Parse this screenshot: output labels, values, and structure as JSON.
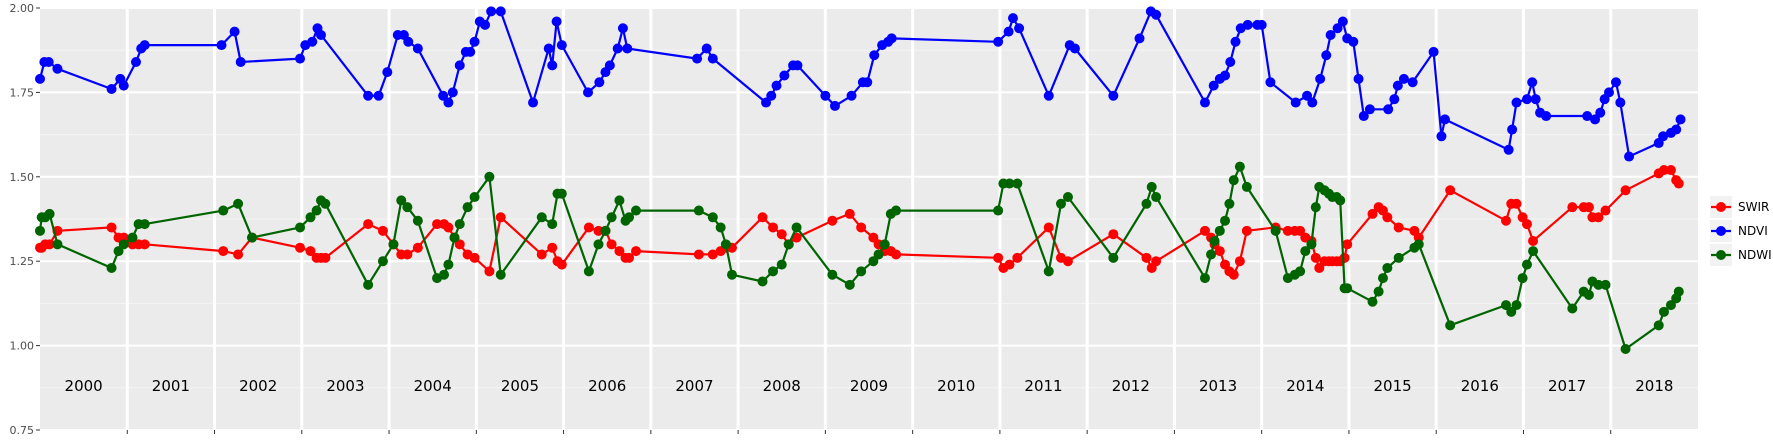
{
  "chart_data": {
    "type": "line",
    "title": "",
    "xlabel": "",
    "ylabel": "",
    "ylim": [
      0.75,
      2.0
    ],
    "y_ticks": [
      "0.75",
      "1.00",
      "1.25",
      "1.50",
      "1.75",
      "2.00"
    ],
    "y_tick_values": [
      0.75,
      1.0,
      1.25,
      1.5,
      1.75,
      2.0
    ],
    "xlim": [
      2000.0,
      2019.0
    ],
    "year_labels": [
      "2000",
      "2001",
      "2002",
      "2003",
      "2004",
      "2005",
      "2006",
      "2007",
      "2008",
      "2009",
      "2010",
      "2011",
      "2012",
      "2013",
      "2014",
      "2015",
      "2016",
      "2017",
      "2018"
    ],
    "grid": true,
    "background": "#ebebeb",
    "legend_position": "right",
    "series": [
      {
        "name": "SWIR",
        "color": "#ff0000",
        "x": [
          2000.0,
          2000.02,
          2000.06,
          2000.11,
          2000.2,
          2000.82,
          2000.9,
          2000.96,
          2001.06,
          2001.13,
          2001.2,
          2002.1,
          2002.27,
          2002.43,
          2002.98,
          2003.1,
          2003.17,
          2003.22,
          2003.27,
          2003.76,
          2003.93,
          2004.05,
          2004.14,
          2004.21,
          2004.33,
          2004.55,
          2004.63,
          2004.68,
          2004.75,
          2004.81,
          2004.9,
          2004.98,
          2005.15,
          2005.28,
          2005.75,
          2005.87,
          2005.93,
          2005.98,
          2006.29,
          2006.4,
          2006.48,
          2006.55,
          2006.64,
          2006.71,
          2006.75,
          2006.83,
          2007.55,
          2007.71,
          2007.8,
          2007.86,
          2007.93,
          2008.28,
          2008.4,
          2008.5,
          2008.58,
          2008.67,
          2009.08,
          2009.28,
          2009.41,
          2009.55,
          2009.61,
          2009.68,
          2009.75,
          2009.81,
          2010.98,
          2011.04,
          2011.11,
          2011.2,
          2011.56,
          2011.7,
          2011.78,
          2012.3,
          2012.68,
          2012.74,
          2012.79,
          2013.35,
          2013.42,
          2013.46,
          2013.52,
          2013.58,
          2013.63,
          2013.68,
          2013.75,
          2013.83,
          2014.16,
          2014.3,
          2014.38,
          2014.44,
          2014.5,
          2014.57,
          2014.62,
          2014.66,
          2014.72,
          2014.77,
          2014.81,
          2014.86,
          2014.9,
          2014.95,
          2014.98,
          2015.27,
          2015.34,
          2015.39,
          2015.44,
          2015.57,
          2015.75,
          2015.8,
          2016.16,
          2016.8,
          2016.86,
          2016.92,
          2016.99,
          2017.04,
          2017.11,
          2017.56,
          2017.69,
          2017.75,
          2017.79,
          2017.86,
          2017.94,
          2018.17,
          2018.55,
          2018.61,
          2018.69,
          2018.75,
          2018.78
        ],
        "values": [
          1.29,
          1.29,
          1.3,
          1.3,
          1.34,
          1.35,
          1.32,
          1.32,
          1.3,
          1.3,
          1.3,
          1.28,
          1.27,
          1.32,
          1.29,
          1.28,
          1.26,
          1.26,
          1.26,
          1.36,
          1.34,
          1.3,
          1.27,
          1.27,
          1.29,
          1.36,
          1.36,
          1.35,
          1.32,
          1.3,
          1.27,
          1.26,
          1.22,
          1.38,
          1.27,
          1.29,
          1.25,
          1.24,
          1.35,
          1.34,
          1.34,
          1.3,
          1.28,
          1.26,
          1.26,
          1.28,
          1.27,
          1.27,
          1.28,
          1.29,
          1.29,
          1.38,
          1.35,
          1.33,
          1.3,
          1.32,
          1.37,
          1.39,
          1.35,
          1.32,
          1.3,
          1.28,
          1.28,
          1.27,
          1.26,
          1.23,
          1.24,
          1.26,
          1.35,
          1.26,
          1.25,
          1.33,
          1.26,
          1.23,
          1.25,
          1.34,
          1.32,
          1.3,
          1.28,
          1.24,
          1.22,
          1.21,
          1.25,
          1.34,
          1.35,
          1.34,
          1.34,
          1.34,
          1.32,
          1.31,
          1.26,
          1.23,
          1.25,
          1.25,
          1.25,
          1.25,
          1.25,
          1.26,
          1.3,
          1.39,
          1.41,
          1.4,
          1.38,
          1.35,
          1.34,
          1.32,
          1.46,
          1.37,
          1.42,
          1.42,
          1.38,
          1.36,
          1.31,
          1.41,
          1.41,
          1.41,
          1.38,
          1.38,
          1.4,
          1.46,
          1.51,
          1.52,
          1.52,
          1.49,
          1.48
        ]
      },
      {
        "name": "NDVI",
        "color": "#0000ff",
        "x": [
          2000.0,
          2000.05,
          2000.1,
          2000.2,
          2000.82,
          2000.92,
          2000.96,
          2001.1,
          2001.16,
          2001.2,
          2002.08,
          2002.23,
          2002.3,
          2002.98,
          2003.04,
          2003.12,
          2003.18,
          2003.22,
          2003.76,
          2003.88,
          2003.98,
          2004.1,
          2004.17,
          2004.22,
          2004.33,
          2004.62,
          2004.68,
          2004.73,
          2004.81,
          2004.88,
          2004.93,
          2004.98,
          2005.04,
          2005.1,
          2005.17,
          2005.28,
          2005.65,
          2005.83,
          2005.87,
          2005.92,
          2005.98,
          2006.28,
          2006.41,
          2006.48,
          2006.53,
          2006.62,
          2006.68,
          2006.73,
          2007.53,
          2007.64,
          2007.71,
          2008.32,
          2008.38,
          2008.44,
          2008.53,
          2008.63,
          2008.68,
          2009.0,
          2009.11,
          2009.3,
          2009.43,
          2009.48,
          2009.56,
          2009.65,
          2009.72,
          2009.76,
          2010.98,
          2011.1,
          2011.15,
          2011.22,
          2011.56,
          2011.8,
          2011.86,
          2012.3,
          2012.6,
          2012.73,
          2012.79,
          2013.35,
          2013.45,
          2013.52,
          2013.58,
          2013.64,
          2013.7,
          2013.76,
          2013.84,
          2013.95,
          2014.0,
          2014.1,
          2014.39,
          2014.52,
          2014.58,
          2014.67,
          2014.74,
          2014.79,
          2014.87,
          2014.93,
          2014.98,
          2015.05,
          2015.11,
          2015.17,
          2015.24,
          2015.45,
          2015.52,
          2015.56,
          2015.63,
          2015.73,
          2015.97,
          2016.06,
          2016.1,
          2016.83,
          2016.87,
          2016.92,
          2017.04,
          2017.1,
          2017.14,
          2017.19,
          2017.26,
          2017.73,
          2017.82,
          2017.88,
          2017.93,
          2017.98,
          2018.06,
          2018.11,
          2018.21,
          2018.55,
          2018.6,
          2018.69,
          2018.75,
          2018.8
        ],
        "values": [
          1.79,
          1.84,
          1.84,
          1.82,
          1.76,
          1.79,
          1.77,
          1.84,
          1.88,
          1.89,
          1.89,
          1.93,
          1.84,
          1.85,
          1.89,
          1.9,
          1.94,
          1.92,
          1.74,
          1.74,
          1.81,
          1.92,
          1.92,
          1.9,
          1.88,
          1.74,
          1.72,
          1.75,
          1.83,
          1.87,
          1.87,
          1.9,
          1.96,
          1.95,
          1.99,
          1.99,
          1.72,
          1.88,
          1.83,
          1.96,
          1.89,
          1.75,
          1.78,
          1.81,
          1.83,
          1.88,
          1.94,
          1.88,
          1.85,
          1.88,
          1.85,
          1.72,
          1.74,
          1.77,
          1.8,
          1.83,
          1.83,
          1.74,
          1.71,
          1.74,
          1.78,
          1.78,
          1.86,
          1.89,
          1.9,
          1.91,
          1.9,
          1.93,
          1.97,
          1.94,
          1.74,
          1.89,
          1.88,
          1.74,
          1.91,
          1.99,
          1.98,
          1.72,
          1.77,
          1.79,
          1.8,
          1.84,
          1.9,
          1.94,
          1.95,
          1.95,
          1.95,
          1.78,
          1.72,
          1.74,
          1.72,
          1.79,
          1.86,
          1.92,
          1.94,
          1.96,
          1.91,
          1.9,
          1.79,
          1.68,
          1.7,
          1.7,
          1.73,
          1.77,
          1.79,
          1.78,
          1.87,
          1.62,
          1.67,
          1.58,
          1.64,
          1.72,
          1.73,
          1.78,
          1.73,
          1.69,
          1.68,
          1.68,
          1.67,
          1.69,
          1.73,
          1.75,
          1.78,
          1.72,
          1.56,
          1.6,
          1.62,
          1.63,
          1.64,
          1.67
        ]
      },
      {
        "name": "NDWI",
        "color": "#006400",
        "x": [
          2000.0,
          2000.02,
          2000.06,
          2000.11,
          2000.2,
          2000.82,
          2000.9,
          2000.96,
          2001.06,
          2001.13,
          2001.2,
          2002.1,
          2002.27,
          2002.43,
          2002.98,
          2003.1,
          2003.17,
          2003.22,
          2003.27,
          2003.76,
          2003.93,
          2004.05,
          2004.14,
          2004.21,
          2004.33,
          2004.55,
          2004.63,
          2004.68,
          2004.75,
          2004.81,
          2004.9,
          2004.98,
          2005.15,
          2005.28,
          2005.75,
          2005.87,
          2005.93,
          2005.98,
          2006.29,
          2006.4,
          2006.48,
          2006.55,
          2006.64,
          2006.71,
          2006.75,
          2006.83,
          2007.55,
          2007.71,
          2007.8,
          2007.86,
          2007.93,
          2008.28,
          2008.4,
          2008.5,
          2008.58,
          2008.67,
          2009.08,
          2009.28,
          2009.41,
          2009.55,
          2009.61,
          2009.68,
          2009.75,
          2009.81,
          2010.98,
          2011.04,
          2011.11,
          2011.2,
          2011.56,
          2011.7,
          2011.78,
          2012.3,
          2012.68,
          2012.74,
          2012.79,
          2013.35,
          2013.42,
          2013.46,
          2013.52,
          2013.58,
          2013.63,
          2013.68,
          2013.75,
          2013.83,
          2014.16,
          2014.3,
          2014.38,
          2014.44,
          2014.5,
          2014.57,
          2014.62,
          2014.66,
          2014.72,
          2014.77,
          2014.81,
          2014.86,
          2014.9,
          2014.95,
          2014.98,
          2015.27,
          2015.34,
          2015.39,
          2015.44,
          2015.57,
          2015.75,
          2015.8,
          2016.16,
          2016.8,
          2016.86,
          2016.92,
          2016.99,
          2017.04,
          2017.11,
          2017.56,
          2017.69,
          2017.75,
          2017.79,
          2017.86,
          2017.94,
          2018.17,
          2018.55,
          2018.61,
          2018.69,
          2018.75,
          2018.78
        ],
        "values": [
          1.34,
          1.38,
          1.38,
          1.39,
          1.3,
          1.23,
          1.28,
          1.3,
          1.32,
          1.36,
          1.36,
          1.4,
          1.42,
          1.32,
          1.35,
          1.38,
          1.4,
          1.43,
          1.42,
          1.18,
          1.25,
          1.3,
          1.43,
          1.41,
          1.37,
          1.2,
          1.21,
          1.24,
          1.32,
          1.36,
          1.41,
          1.44,
          1.5,
          1.21,
          1.38,
          1.36,
          1.45,
          1.45,
          1.22,
          1.3,
          1.34,
          1.38,
          1.43,
          1.37,
          1.38,
          1.4,
          1.4,
          1.38,
          1.35,
          1.3,
          1.21,
          1.19,
          1.22,
          1.24,
          1.3,
          1.35,
          1.21,
          1.18,
          1.22,
          1.25,
          1.27,
          1.3,
          1.39,
          1.4,
          1.4,
          1.48,
          1.48,
          1.48,
          1.22,
          1.42,
          1.44,
          1.26,
          1.42,
          1.47,
          1.44,
          1.2,
          1.27,
          1.31,
          1.34,
          1.37,
          1.42,
          1.49,
          1.53,
          1.47,
          1.34,
          1.2,
          1.21,
          1.22,
          1.28,
          1.3,
          1.41,
          1.47,
          1.46,
          1.45,
          1.44,
          1.44,
          1.43,
          1.17,
          1.17,
          1.13,
          1.16,
          1.2,
          1.23,
          1.26,
          1.29,
          1.3,
          1.06,
          1.12,
          1.1,
          1.12,
          1.2,
          1.24,
          1.28,
          1.11,
          1.16,
          1.15,
          1.19,
          1.18,
          1.18,
          0.99,
          1.06,
          1.1,
          1.12,
          1.14,
          1.16
        ]
      }
    ]
  }
}
